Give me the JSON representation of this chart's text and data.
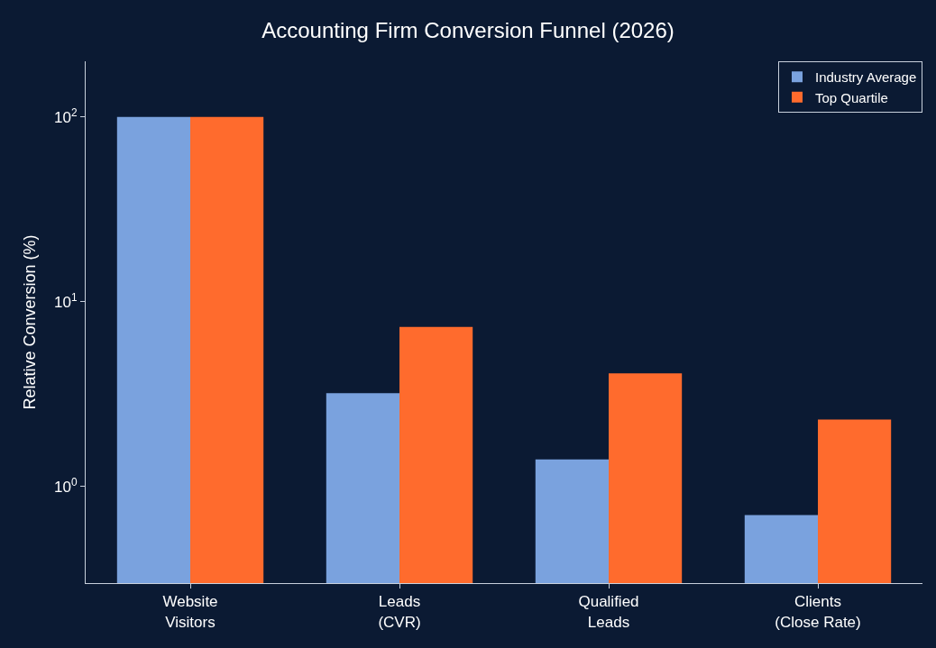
{
  "chart_data": {
    "type": "bar",
    "title": "Accounting Firm Conversion Funnel (2026)",
    "ylabel": "Relative Conversion (%)",
    "categories": [
      "Website\nVisitors",
      "Leads\n(CVR)",
      "Qualified\nLeads",
      "Clients\n(Close Rate)"
    ],
    "series": [
      {
        "name": "Industry Average",
        "color": "#7aa2de",
        "values": [
          100,
          3.2,
          1.4,
          0.7
        ]
      },
      {
        "name": "Top Quartile",
        "color": "#ff6b2d",
        "values": [
          100,
          7.3,
          4.1,
          2.3
        ]
      }
    ],
    "log": true,
    "ylim": [
      0.3,
      200
    ],
    "yticks": [
      {
        "value": 1,
        "label": "10$^{0}$"
      },
      {
        "value": 10,
        "label": "10$^{1}$"
      },
      {
        "value": 100,
        "label": "10$^{2}$"
      }
    ],
    "legend": "top right",
    "grid": false
  }
}
